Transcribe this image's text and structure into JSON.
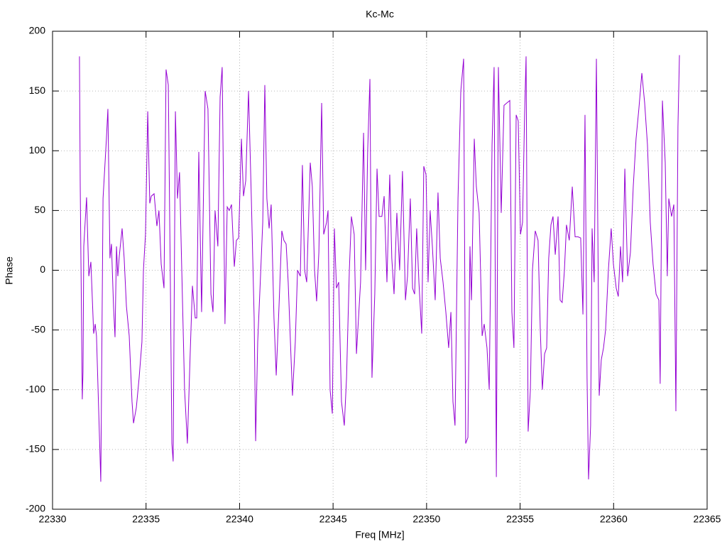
{
  "chart_data": {
    "type": "line",
    "title": "Kc-Mc",
    "x_label": "Freq [MHz]",
    "y_label": "Phase",
    "xlim": [
      22330,
      22365
    ],
    "xticks": [
      22330,
      22335,
      22340,
      22345,
      22350,
      22355,
      22360,
      22365
    ],
    "ylim": [
      -200,
      200
    ],
    "yticks": [
      -200,
      -150,
      -100,
      -50,
      0,
      50,
      100,
      150,
      200
    ],
    "grid": true,
    "x": [
      22331.44,
      22331.48,
      22331.59,
      22331.63,
      22331.67,
      22331.82,
      22331.94,
      22332.05,
      22332.2,
      22332.28,
      22332.35,
      22332.58,
      22332.7,
      22332.88,
      22332.96,
      22333.07,
      22333.15,
      22333.26,
      22333.34,
      22333.42,
      22333.49,
      22333.57,
      22333.72,
      22333.83,
      22333.95,
      22334.1,
      22334.25,
      22334.33,
      22334.48,
      22334.63,
      22334.78,
      22334.86,
      22334.97,
      22335.09,
      22335.2,
      22335.28,
      22335.43,
      22335.58,
      22335.69,
      22335.81,
      22335.96,
      22336.07,
      22336.19,
      22336.3,
      22336.38,
      22336.45,
      22336.57,
      22336.68,
      22336.79,
      22336.91,
      22337.06,
      22337.21,
      22337.36,
      22337.48,
      22337.63,
      22337.71,
      22337.82,
      22337.97,
      22338.16,
      22338.31,
      22338.47,
      22338.58,
      22338.69,
      22338.84,
      22338.96,
      22339.07,
      22339.22,
      22339.34,
      22339.45,
      22339.57,
      22339.72,
      22339.83,
      22339.95,
      22340.1,
      22340.21,
      22340.33,
      22340.48,
      22340.63,
      22340.78,
      22340.86,
      22340.97,
      22341.08,
      22341.24,
      22341.35,
      22341.46,
      22341.58,
      22341.69,
      22341.84,
      22341.96,
      22342.11,
      22342.26,
      22342.37,
      22342.49,
      22342.6,
      22342.72,
      22342.83,
      22342.98,
      22343.1,
      22343.25,
      22343.36,
      22343.48,
      22343.59,
      22343.78,
      22343.89,
      22344.01,
      22344.12,
      22344.24,
      22344.39,
      22344.5,
      22344.65,
      22344.73,
      22344.84,
      22344.96,
      22345.07,
      22345.18,
      22345.3,
      22345.45,
      22345.6,
      22345.72,
      22345.87,
      22345.98,
      22346.13,
      22346.25,
      22346.36,
      22346.47,
      22346.63,
      22346.74,
      22346.85,
      22346.97,
      22347.08,
      22347.23,
      22347.35,
      22347.46,
      22347.61,
      22347.73,
      22347.88,
      22348.03,
      22348.14,
      22348.26,
      22348.41,
      22348.56,
      22348.71,
      22348.87,
      22348.98,
      22349.13,
      22349.25,
      22349.36,
      22349.47,
      22349.59,
      22349.74,
      22349.85,
      22349.97,
      22350.08,
      22350.19,
      22350.31,
      22350.46,
      22350.61,
      22350.73,
      22350.88,
      22351.03,
      22351.18,
      22351.3,
      22351.41,
      22351.52,
      22351.68,
      22351.83,
      22351.98,
      22352.09,
      22352.21,
      22352.32,
      22352.4,
      22352.55,
      22352.66,
      22352.81,
      22352.97,
      22353.08,
      22353.23,
      22353.35,
      22353.5,
      22353.61,
      22353.73,
      22353.84,
      22353.99,
      22354.14,
      22354.29,
      22354.45,
      22354.56,
      22354.67,
      22354.79,
      22354.9,
      22355.02,
      22355.13,
      22355.24,
      22355.32,
      22355.43,
      22355.55,
      22355.66,
      22355.81,
      22355.96,
      22356.08,
      22356.19,
      22356.31,
      22356.42,
      22356.53,
      22356.65,
      22356.76,
      22356.88,
      22357.03,
      22357.14,
      22357.25,
      22357.37,
      22357.48,
      22357.63,
      22357.79,
      22357.94,
      22358.09,
      22358.24,
      22358.36,
      22358.47,
      22358.58,
      22358.66,
      22358.77,
      22358.85,
      22358.96,
      22359.08,
      22359.23,
      22359.34,
      22359.46,
      22359.57,
      22359.72,
      22359.87,
      22359.99,
      22360.14,
      22360.25,
      22360.37,
      22360.48,
      22360.6,
      22360.75,
      22360.9,
      22361.05,
      22361.2,
      22361.35,
      22361.51,
      22361.66,
      22361.81,
      22361.96,
      22362.11,
      22362.27,
      22362.42,
      22362.49,
      22362.61,
      22362.76,
      22362.87,
      22362.95,
      22363.1,
      22363.22,
      22363.33,
      22363.37,
      22363.44,
      22363.52
    ],
    "series": [
      {
        "color": "#9400d3",
        "values": [
          179,
          72,
          -108,
          -85,
          20,
          61,
          -5,
          7,
          -53,
          -45,
          -55,
          -177,
          60,
          110,
          135,
          10,
          22,
          -30,
          -56,
          20,
          -5,
          12,
          35,
          10,
          -30,
          -55,
          -110,
          -128,
          -115,
          -90,
          -60,
          0,
          30,
          133,
          56,
          62,
          64,
          37,
          50,
          5,
          -15,
          168,
          155,
          -10,
          -145,
          -160,
          133,
          60,
          82,
          0,
          -100,
          -145,
          -70,
          -13,
          -40,
          -40,
          99,
          -35,
          150,
          135,
          -20,
          -35,
          50,
          20,
          145,
          170,
          -45,
          53,
          50,
          55,
          3,
          25,
          27,
          110,
          62,
          75,
          150,
          60,
          -40,
          -143,
          -60,
          -20,
          40,
          155,
          60,
          35,
          55,
          -40,
          -88,
          -30,
          33,
          25,
          22,
          -10,
          -60,
          -105,
          -60,
          0,
          -5,
          88,
          0,
          -10,
          90,
          70,
          0,
          -26,
          15,
          140,
          30,
          40,
          50,
          -100,
          -120,
          35,
          -15,
          -10,
          -110,
          -130,
          -90,
          0,
          45,
          30,
          -70,
          -40,
          -10,
          115,
          0,
          100,
          160,
          -90,
          -20,
          85,
          45,
          45,
          62,
          -10,
          80,
          10,
          -20,
          48,
          0,
          83,
          -25,
          -5,
          60,
          -15,
          -20,
          35,
          -10,
          -53,
          87,
          80,
          -10,
          50,
          20,
          -25,
          65,
          10,
          -10,
          -35,
          -65,
          -35,
          -110,
          -130,
          60,
          150,
          177,
          -145,
          -140,
          20,
          -25,
          110,
          70,
          48,
          -55,
          -45,
          -65,
          -100,
          105,
          170,
          -173,
          170,
          48,
          138,
          140,
          142,
          -35,
          -65,
          130,
          125,
          30,
          40,
          130,
          179,
          -135,
          -100,
          0,
          33,
          25,
          -50,
          -100,
          -70,
          -65,
          10,
          38,
          45,
          13,
          45,
          -25,
          -27,
          0,
          38,
          25,
          70,
          28,
          28,
          27,
          -37,
          130,
          -90,
          -175,
          -130,
          35,
          -10,
          177,
          -105,
          -75,
          -65,
          -50,
          0,
          35,
          5,
          -15,
          -22,
          20,
          -10,
          85,
          -5,
          15,
          70,
          110,
          135,
          165,
          140,
          105,
          40,
          5,
          -20,
          -25,
          -95,
          142,
          90,
          -5,
          60,
          45,
          55,
          -118,
          -30,
          120,
          180
        ]
      }
    ]
  }
}
